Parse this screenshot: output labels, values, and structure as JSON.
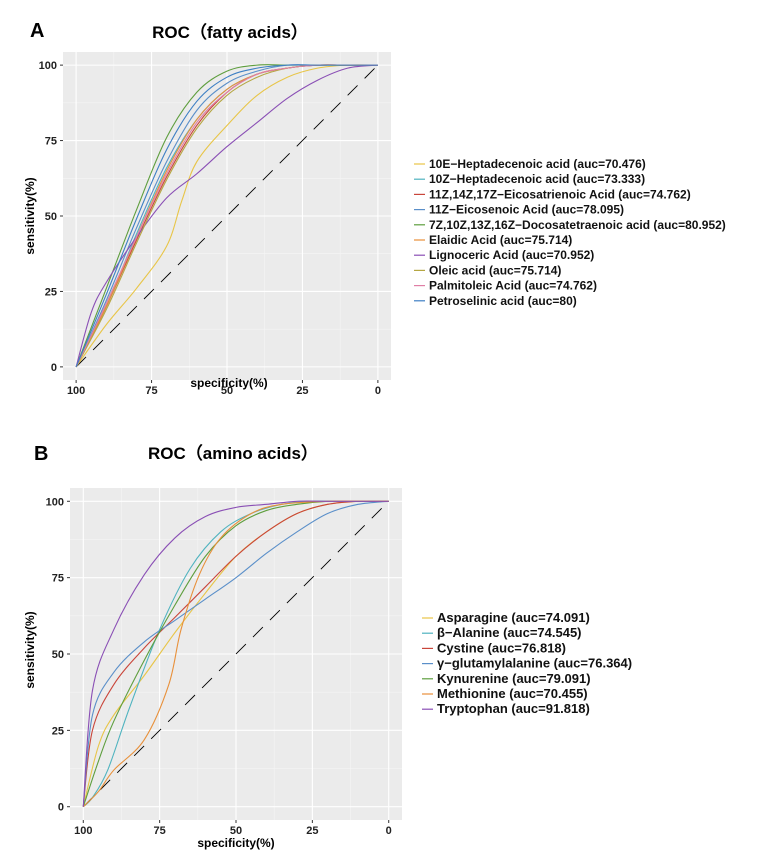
{
  "figure": {
    "panels": [
      "A",
      "B"
    ]
  },
  "chart_data": [
    {
      "panel": "A",
      "type": "line",
      "title": "ROC（fatty acids）",
      "xlabel": "specificity(%)",
      "ylabel": "sensitivity(%)",
      "xlim": [
        100,
        0
      ],
      "ylim": [
        0,
        100
      ],
      "xticks": [
        100,
        75,
        50,
        25,
        0
      ],
      "yticks": [
        0,
        25,
        50,
        75,
        100
      ],
      "grid": true,
      "legend_position": "right",
      "reference_line": {
        "style": "dashed",
        "color": "#000000",
        "from": [
          100,
          0
        ],
        "to": [
          0,
          100
        ]
      },
      "series": [
        {
          "name": "10E−Heptadecenoic acid (auc=70.476)",
          "color": "#E8C547",
          "x": [
            100,
            90,
            80,
            70,
            65,
            60,
            50,
            40,
            30,
            20,
            10,
            0
          ],
          "y": [
            0,
            14,
            26,
            40,
            55,
            68,
            80,
            90,
            96,
            99,
            100,
            100
          ]
        },
        {
          "name": "10Z−Heptadecenoic acid (auc=73.333)",
          "color": "#4FB3BF",
          "x": [
            100,
            90,
            80,
            70,
            60,
            50,
            40,
            30,
            20,
            10,
            0
          ],
          "y": [
            0,
            20,
            44,
            66,
            82,
            92,
            97,
            99,
            100,
            100,
            100
          ]
        },
        {
          "name": "11Z,14Z,17Z−Eicosatrienoic Acid (auc=74.762)",
          "color": "#C9453A",
          "x": [
            100,
            90,
            80,
            70,
            60,
            50,
            40,
            30,
            20,
            10,
            0
          ],
          "y": [
            0,
            20,
            42,
            63,
            80,
            91,
            97,
            99,
            100,
            100,
            100
          ]
        },
        {
          "name": "11Z−Eicosenoic Acid (auc=78.095)",
          "color": "#5A8FC9",
          "x": [
            100,
            90,
            80,
            70,
            60,
            50,
            40,
            30,
            20,
            10,
            0
          ],
          "y": [
            0,
            22,
            46,
            68,
            85,
            94,
            98,
            100,
            100,
            100,
            100
          ]
        },
        {
          "name": "7Z,10Z,13Z,16Z−Docosatetraenoic acid (auc=80.952)",
          "color": "#5E9E3E",
          "x": [
            100,
            90,
            80,
            70,
            60,
            50,
            40,
            30,
            20,
            10,
            0
          ],
          "y": [
            0,
            26,
            52,
            76,
            91,
            98,
            100,
            100,
            100,
            100,
            100
          ]
        },
        {
          "name": "Elaidic Acid (auc=75.714)",
          "color": "#E8903A",
          "x": [
            100,
            90,
            80,
            70,
            60,
            50,
            40,
            30,
            20,
            10,
            0
          ],
          "y": [
            0,
            20,
            43,
            65,
            82,
            92,
            97,
            99,
            100,
            100,
            100
          ]
        },
        {
          "name": "Lignoceric Acid (auc=70.952)",
          "color": "#8A4FB5",
          "x": [
            100,
            95,
            90,
            80,
            70,
            60,
            50,
            40,
            30,
            20,
            10,
            0
          ],
          "y": [
            0,
            18,
            28,
            43,
            56,
            64,
            73,
            81,
            89,
            95,
            99,
            100
          ]
        },
        {
          "name": "Oleic acid (auc=75.714)",
          "color": "#B5A642",
          "x": [
            100,
            90,
            80,
            70,
            60,
            50,
            40,
            30,
            20,
            10,
            0
          ],
          "y": [
            0,
            19,
            41,
            62,
            79,
            90,
            96,
            99,
            100,
            100,
            100
          ]
        },
        {
          "name": "Palmitoleic Acid (auc=74.762)",
          "color": "#E07FA6",
          "x": [
            100,
            90,
            80,
            70,
            60,
            50,
            40,
            30,
            20,
            10,
            0
          ],
          "y": [
            0,
            21,
            43,
            64,
            81,
            91,
            97,
            99,
            100,
            100,
            100
          ]
        },
        {
          "name": "Petroselinic acid (auc=80)",
          "color": "#3D7FC4",
          "x": [
            100,
            90,
            80,
            70,
            60,
            50,
            40,
            30,
            20,
            10,
            0
          ],
          "y": [
            0,
            24,
            49,
            72,
            88,
            96,
            99,
            100,
            100,
            100,
            100
          ]
        }
      ]
    },
    {
      "panel": "B",
      "type": "line",
      "title": "ROC（amino acids）",
      "xlabel": "specificity(%)",
      "ylabel": "sensitivity(%)",
      "xlim": [
        100,
        0
      ],
      "ylim": [
        0,
        100
      ],
      "xticks": [
        100,
        75,
        50,
        25,
        0
      ],
      "yticks": [
        0,
        25,
        50,
        75,
        100
      ],
      "grid": true,
      "legend_position": "right",
      "reference_line": {
        "style": "dashed",
        "color": "#000000",
        "from": [
          100,
          0
        ],
        "to": [
          0,
          100
        ]
      },
      "series": [
        {
          "name": "Asparagine (auc=74.091)",
          "color": "#E8C547",
          "x": [
            100,
            95,
            90,
            80,
            70,
            60,
            50,
            40,
            30,
            20,
            10,
            0
          ],
          "y": [
            0,
            20,
            30,
            43,
            57,
            70,
            82,
            90,
            96,
            99,
            100,
            100
          ]
        },
        {
          "name": "β−Alanine (auc=74.545)",
          "color": "#4FB3BF",
          "x": [
            100,
            97,
            92,
            85,
            75,
            65,
            55,
            45,
            35,
            25,
            15,
            0
          ],
          "y": [
            0,
            3,
            12,
            32,
            58,
            78,
            90,
            96,
            99,
            100,
            100,
            100
          ]
        },
        {
          "name": "Cystine (auc=76.818)",
          "color": "#C9453A",
          "x": [
            100,
            97,
            90,
            80,
            70,
            60,
            50,
            40,
            30,
            20,
            10,
            0
          ],
          "y": [
            0,
            25,
            40,
            52,
            62,
            72,
            82,
            90,
            96,
            99,
            100,
            100
          ]
        },
        {
          "name": "γ−glutamylalanine (auc=76.364)",
          "color": "#5A8FC9",
          "x": [
            100,
            97,
            90,
            80,
            70,
            60,
            50,
            40,
            30,
            20,
            10,
            0
          ],
          "y": [
            0,
            30,
            44,
            54,
            61,
            68,
            75,
            83,
            90,
            96,
            99,
            100
          ]
        },
        {
          "name": "Kynurenine (auc=79.091)",
          "color": "#5E9E3E",
          "x": [
            100,
            95,
            90,
            80,
            70,
            60,
            50,
            40,
            30,
            20,
            10,
            0
          ],
          "y": [
            0,
            15,
            28,
            48,
            66,
            82,
            92,
            97,
            99,
            100,
            100,
            100
          ]
        },
        {
          "name": "Methionine (auc=70.455)",
          "color": "#E8903A",
          "x": [
            100,
            95,
            90,
            80,
            72,
            68,
            62,
            55,
            45,
            35,
            20,
            0
          ],
          "y": [
            0,
            5,
            12,
            22,
            40,
            58,
            76,
            88,
            96,
            99,
            100,
            100
          ]
        },
        {
          "name": "Tryptophan (auc=91.818)",
          "color": "#8A4FB5",
          "x": [
            100,
            97,
            90,
            80,
            70,
            60,
            50,
            40,
            30,
            20,
            10,
            0
          ],
          "y": [
            0,
            38,
            58,
            76,
            88,
            95,
            98,
            99,
            100,
            100,
            100,
            100
          ]
        }
      ]
    }
  ]
}
